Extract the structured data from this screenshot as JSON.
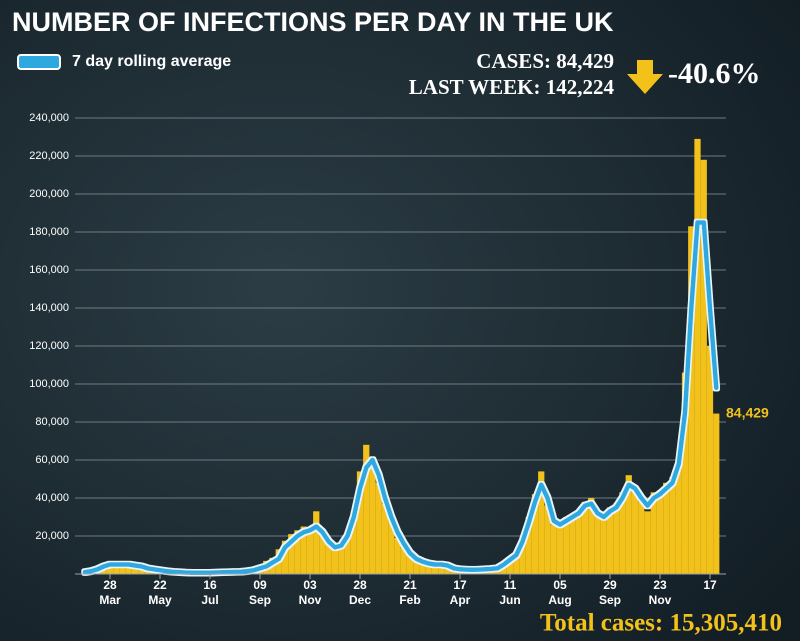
{
  "chart_data": {
    "type": "bar_line",
    "title": "NUMBER OF INFECTIONS PER DAY IN THE UK",
    "cases_text": "CASES: 84,429",
    "last_week_text": "LAST WEEK: 142,224",
    "change_text": "-40.6%",
    "last_value_label": "84,429",
    "total_text": "Total cases: 15,305,410",
    "categories": [
      null,
      null,
      null,
      null,
      "28",
      null,
      null,
      null,
      null,
      null,
      null,
      null,
      "22",
      null,
      null,
      null,
      null,
      null,
      null,
      null,
      "16",
      null,
      null,
      null,
      null,
      null,
      null,
      null,
      "09",
      null,
      null,
      null,
      null,
      null,
      null,
      null,
      "03",
      null,
      null,
      null,
      null,
      null,
      null,
      null,
      "28",
      null,
      null,
      null,
      null,
      null,
      null,
      null,
      "21",
      null,
      null,
      null,
      null,
      null,
      null,
      null,
      "17",
      null,
      null,
      null,
      null,
      null,
      null,
      null,
      "11",
      null,
      null,
      null,
      null,
      null,
      null,
      null,
      "05",
      null,
      null,
      null,
      null,
      null,
      null,
      null,
      "29",
      null,
      null,
      null,
      null,
      null,
      null,
      null,
      "23",
      null,
      null,
      null,
      null,
      null,
      null,
      null,
      "17",
      null
    ],
    "months": [
      null,
      null,
      null,
      null,
      "Mar",
      null,
      null,
      null,
      null,
      null,
      null,
      null,
      "May",
      null,
      null,
      null,
      null,
      null,
      null,
      null,
      "Jul",
      null,
      null,
      null,
      null,
      null,
      null,
      null,
      "Sep",
      null,
      null,
      null,
      null,
      null,
      null,
      null,
      "Nov",
      null,
      null,
      null,
      null,
      null,
      null,
      null,
      "Dec",
      null,
      null,
      null,
      null,
      null,
      null,
      null,
      "Feb",
      null,
      null,
      null,
      null,
      null,
      null,
      null,
      "Apr",
      null,
      null,
      null,
      null,
      null,
      null,
      null,
      "Jun",
      null,
      null,
      null,
      null,
      null,
      null,
      null,
      "Aug",
      null,
      null,
      null,
      null,
      null,
      null,
      null,
      "Sep",
      null,
      null,
      null,
      null,
      null,
      null,
      null,
      "Nov",
      null,
      null,
      null,
      null,
      null,
      null,
      null,
      null,
      null
    ],
    "series": [
      {
        "name": "Daily cases",
        "color": "#f2c21b",
        "type": "bar",
        "values": [
          800,
          1200,
          2500,
          4500,
          5500,
          5200,
          5000,
          4800,
          4200,
          3600,
          2900,
          2400,
          1800,
          1500,
          1200,
          1000,
          800,
          700,
          650,
          700,
          750,
          800,
          900,
          1100,
          1300,
          1600,
          2200,
          3300,
          4500,
          6900,
          8500,
          13000,
          17500,
          21000,
          23000,
          25000,
          24500,
          33000,
          23000,
          16000,
          13500,
          16000,
          21000,
          33000,
          54000,
          68000,
          58000,
          48000,
          37000,
          28000,
          19000,
          14000,
          10500,
          8000,
          6300,
          5500,
          5000,
          4800,
          4300,
          2800,
          2600,
          2200,
          2100,
          2500,
          2600,
          2800,
          3300,
          5500,
          8000,
          11500,
          18000,
          30000,
          42000,
          54000,
          36000,
          26000,
          27000,
          30000,
          31000,
          33000,
          38000,
          40000,
          33000,
          29000,
          35000,
          37000,
          43000,
          52000,
          44000,
          38000,
          33000,
          43000,
          44000,
          48000,
          51000,
          60000,
          106000,
          183000,
          229000,
          218000,
          120000,
          84429
        ]
      },
      {
        "name": "7 day rolling average",
        "color": "#2ea9e0",
        "type": "line",
        "values": [
          1000,
          1500,
          2500,
          4000,
          5000,
          5000,
          5000,
          5000,
          4500,
          4000,
          3000,
          2500,
          2000,
          1500,
          1200,
          1000,
          800,
          700,
          700,
          700,
          700,
          800,
          900,
          1000,
          1100,
          1200,
          1500,
          2000,
          3000,
          4000,
          6000,
          8000,
          14000,
          17000,
          20000,
          22000,
          23000,
          25000,
          22000,
          17000,
          14000,
          15000,
          20000,
          30000,
          45000,
          56000,
          60000,
          52000,
          40000,
          30000,
          22000,
          16000,
          11000,
          8000,
          6500,
          5500,
          5000,
          5000,
          4500,
          3000,
          2500,
          2300,
          2200,
          2300,
          2500,
          2700,
          3000,
          5000,
          7500,
          10000,
          17000,
          27000,
          38000,
          47000,
          40000,
          28000,
          26000,
          28000,
          30000,
          32000,
          36000,
          37000,
          32000,
          30000,
          33000,
          35000,
          40000,
          47000,
          45000,
          40000,
          36000,
          40000,
          42000,
          45000,
          48000,
          58000,
          85000,
          140000,
          185000,
          185000,
          140000,
          98000
        ]
      }
    ],
    "ylim": [
      0,
      240000
    ],
    "yticks": [
      {
        "value": 20000,
        "label": "20,000"
      },
      {
        "value": 40000,
        "label": "40,000"
      },
      {
        "value": 60000,
        "label": "60,000"
      },
      {
        "value": 80000,
        "label": "80,000"
      },
      {
        "value": 100000,
        "label": "100,000"
      },
      {
        "value": 120000,
        "label": "120,000"
      },
      {
        "value": 140000,
        "label": "140,000"
      },
      {
        "value": 160000,
        "label": "160,000"
      },
      {
        "value": 180000,
        "label": "180,000"
      },
      {
        "value": 200000,
        "label": "200,000"
      },
      {
        "value": 220000,
        "label": "220,000"
      },
      {
        "value": 240000,
        "label": "240,000"
      }
    ],
    "grid": true
  }
}
